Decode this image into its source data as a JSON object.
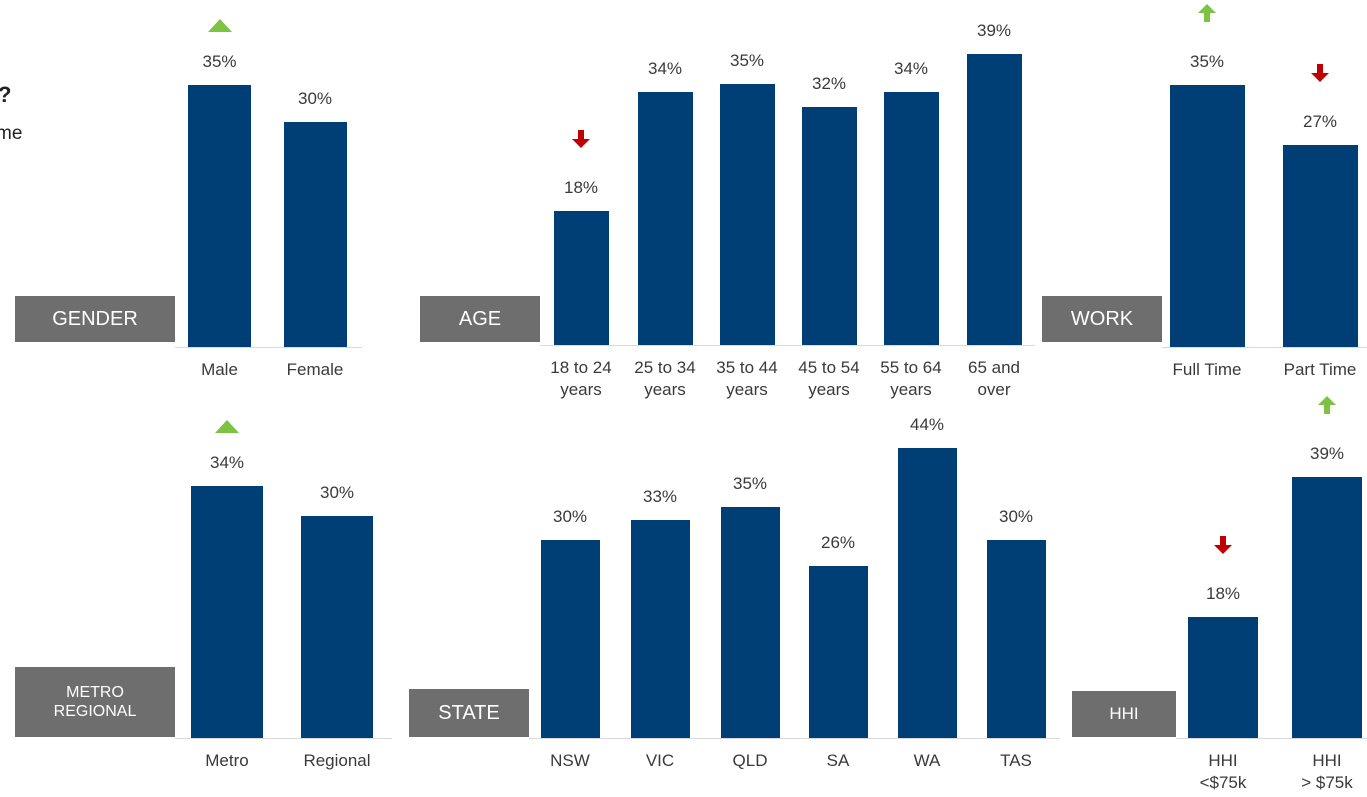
{
  "text_fragments": [
    "?",
    "me"
  ],
  "indicator_colors": {
    "up": "#7dc242",
    "down": "#c00000"
  },
  "chart_data": [
    {
      "type": "bar",
      "title": "GENDER",
      "categories": [
        "Male",
        "Female"
      ],
      "values": [
        35,
        30
      ],
      "value_labels": [
        "35%",
        "30%"
      ],
      "color": "#003f75",
      "ylim": [
        0,
        40
      ],
      "indicators": [
        "up",
        null
      ],
      "indicator_style": "triangle"
    },
    {
      "type": "bar",
      "title": "AGE",
      "categories": [
        "18 to 24\nyears",
        "25 to 34\nyears",
        "35 to 44\nyears",
        "45 to 54\nyears",
        "55 to 64\nyears",
        "65 and\nover"
      ],
      "values": [
        18,
        34,
        35,
        32,
        34,
        39
      ],
      "value_labels": [
        "18%",
        "34%",
        "35%",
        "32%",
        "34%",
        "39%"
      ],
      "color": "#003f75",
      "ylim": [
        0,
        40
      ],
      "indicators": [
        "down",
        null,
        null,
        null,
        null,
        null
      ],
      "indicator_style": "arrow"
    },
    {
      "type": "bar",
      "title": "WORK",
      "categories": [
        "Full Time",
        "Part Time"
      ],
      "values": [
        35,
        27
      ],
      "value_labels": [
        "35%",
        "27%"
      ],
      "color": "#003f75",
      "ylim": [
        0,
        40
      ],
      "indicators": [
        "up",
        "down"
      ],
      "indicator_style": "arrow"
    },
    {
      "type": "bar",
      "title": "METRO\nREGIONAL",
      "categories": [
        "Metro",
        "Regional"
      ],
      "values": [
        34,
        30
      ],
      "value_labels": [
        "34%",
        "30%"
      ],
      "color": "#003f75",
      "ylim": [
        0,
        40
      ],
      "indicators": [
        "up",
        null
      ],
      "indicator_style": "triangle"
    },
    {
      "type": "bar",
      "title": "STATE",
      "categories": [
        "NSW",
        "VIC",
        "QLD",
        "SA",
        "WA",
        "TAS"
      ],
      "values": [
        30,
        33,
        35,
        26,
        44,
        30
      ],
      "value_labels": [
        "30%",
        "33%",
        "35%",
        "26%",
        "44%",
        "30%"
      ],
      "color": "#003f75",
      "ylim": [
        0,
        50
      ],
      "indicators": [
        null,
        null,
        null,
        null,
        null,
        null
      ],
      "indicator_style": "arrow"
    },
    {
      "type": "bar",
      "title": "HHI",
      "categories": [
        "HHI\n<$75k",
        "HHI\n> $75k"
      ],
      "values": [
        18,
        39
      ],
      "value_labels": [
        "18%",
        "39%"
      ],
      "color": "#003f75",
      "ylim": [
        0,
        50
      ],
      "indicators": [
        "down",
        "up"
      ],
      "indicator_style": "arrow"
    }
  ]
}
